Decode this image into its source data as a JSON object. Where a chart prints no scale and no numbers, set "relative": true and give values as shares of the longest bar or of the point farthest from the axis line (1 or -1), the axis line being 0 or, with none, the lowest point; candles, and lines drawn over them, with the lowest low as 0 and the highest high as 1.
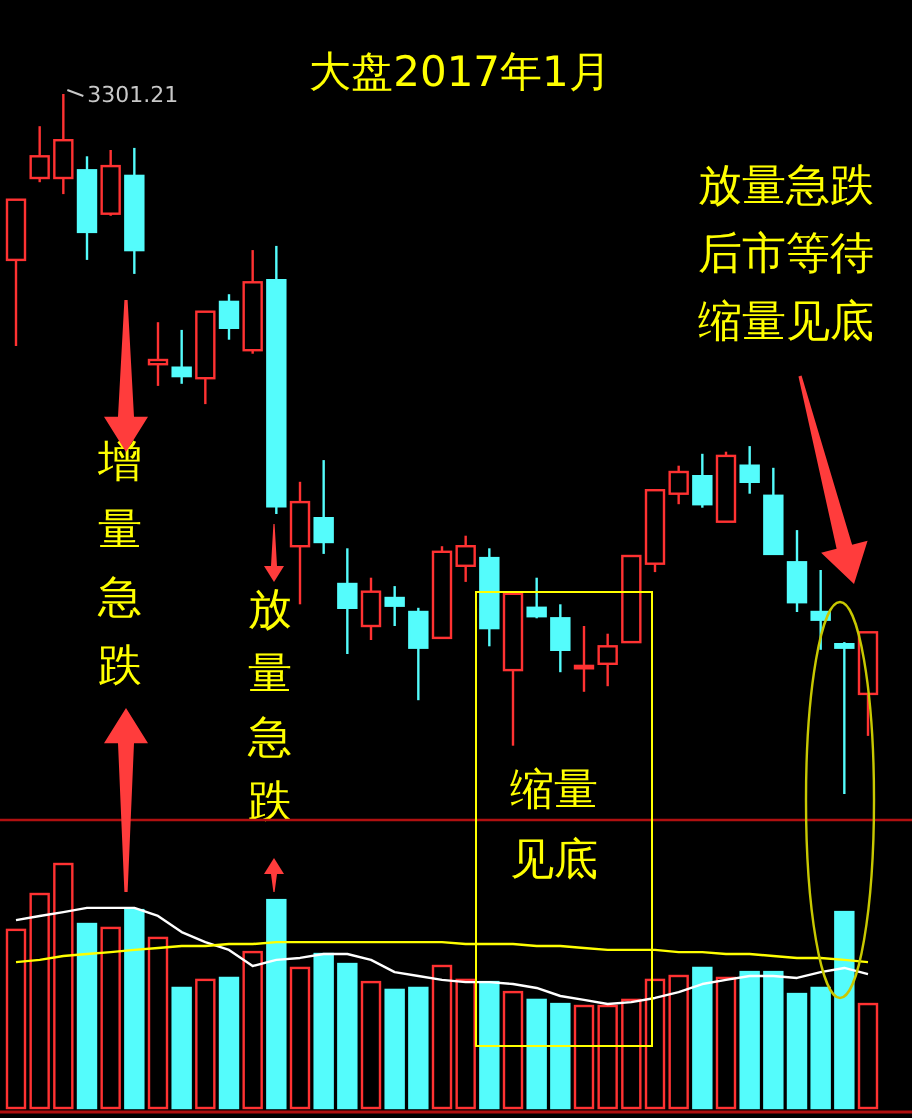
{
  "chart_data": [
    {
      "type": "candlestick",
      "title": "大盘2017年1月",
      "relative": true,
      "categories": [
        null,
        null,
        null,
        null,
        null,
        null,
        null,
        null,
        null,
        null,
        null,
        null,
        null,
        null,
        null,
        null,
        null,
        null,
        null,
        null,
        null,
        null,
        null,
        null,
        null,
        null,
        null,
        null,
        null,
        null,
        null,
        null,
        null,
        null,
        null,
        null,
        null
      ],
      "ohlc": [
        [
          0.763,
          0.849,
          0.64,
          0.849
        ],
        [
          0.88,
          0.954,
          0.874,
          0.911
        ],
        [
          0.88,
          1,
          0.857,
          0.934
        ],
        [
          0.891,
          0.911,
          0.763,
          0.803
        ],
        [
          0.829,
          0.92,
          0.826,
          0.897
        ],
        [
          0.883,
          0.923,
          0.743,
          0.777
        ],
        [
          0.614,
          0.674,
          0.583,
          0.62
        ],
        [
          0.609,
          0.663,
          0.586,
          0.597
        ],
        [
          0.594,
          0.689,
          0.557,
          0.689
        ],
        [
          0.703,
          0.714,
          0.649,
          0.666
        ],
        [
          0.634,
          0.777,
          0.629,
          0.731
        ],
        [
          0.734,
          0.783,
          0.4,
          0.411
        ],
        [
          0.354,
          0.446,
          0.271,
          0.417
        ],
        [
          0.394,
          0.477,
          0.343,
          0.36
        ],
        [
          0.3,
          0.351,
          0.2,
          0.266
        ],
        [
          0.24,
          0.309,
          0.22,
          0.289
        ],
        [
          0.28,
          0.297,
          0.24,
          0.269
        ],
        [
          0.26,
          0.266,
          0.134,
          0.209
        ],
        [
          0.223,
          0.354,
          0.223,
          0.346
        ],
        [
          0.326,
          0.369,
          0.303,
          0.354
        ],
        [
          0.337,
          0.351,
          0.211,
          0.237
        ],
        [
          0.177,
          0.286,
          0.069,
          0.286
        ],
        [
          0.266,
          0.309,
          0.251,
          0.254
        ],
        [
          0.251,
          0.271,
          0.174,
          0.206
        ],
        [
          0.18,
          0.24,
          0.146,
          0.183
        ],
        [
          0.186,
          0.229,
          0.154,
          0.211
        ],
        [
          0.217,
          0.34,
          0.217,
          0.34
        ],
        [
          0.329,
          0.434,
          0.317,
          0.434
        ],
        [
          0.429,
          0.469,
          0.414,
          0.46
        ],
        [
          0.454,
          0.486,
          0.409,
          0.414
        ],
        [
          0.389,
          0.489,
          0.389,
          0.483
        ],
        [
          0.469,
          0.497,
          0.429,
          0.446
        ],
        [
          0.426,
          0.466,
          0.343,
          0.343
        ],
        [
          0.331,
          0.377,
          0.26,
          0.274
        ],
        [
          0.26,
          0.32,
          0.206,
          0.249
        ],
        [
          0.214,
          0.217,
          0,
          0.209
        ],
        [
          0.143,
          0.231,
          0.083,
          0.231
        ]
      ],
      "colors": [
        "#ff3232",
        "#ff3232",
        "#ff3232",
        "#54fcfc",
        "#ff3232",
        "#54fcfc",
        "#ff3232",
        "#54fcfc",
        "#ff3232",
        "#54fcfc",
        "#ff3232",
        "#54fcfc",
        "#ff3232",
        "#54fcfc",
        "#54fcfc",
        "#ff3232",
        "#54fcfc",
        "#54fcfc",
        "#ff3232",
        "#ff3232",
        "#54fcfc",
        "#ff3232",
        "#54fcfc",
        "#54fcfc",
        "#ff3232",
        "#ff3232",
        "#ff3232",
        "#ff3232",
        "#ff3232",
        "#54fcfc",
        "#ff3232",
        "#54fcfc",
        "#54fcfc",
        "#54fcfc",
        "#54fcfc",
        "#54fcfc",
        "#ff3232"
      ],
      "annotations": [
        "3301.21",
        "增量急跌",
        "放量急跌",
        "缩量",
        "见底",
        "放量急跌",
        "后市等待",
        "缩量见底"
      ]
    },
    {
      "type": "bar",
      "relative": true,
      "categories": [
        null,
        null,
        null,
        null,
        null,
        null,
        null,
        null,
        null,
        null,
        null,
        null,
        null,
        null,
        null,
        null,
        null,
        null,
        null,
        null,
        null,
        null,
        null,
        null,
        null,
        null,
        null,
        null,
        null,
        null,
        null,
        null,
        null,
        null,
        null,
        null,
        null
      ],
      "series": [
        {
          "type": "bar",
          "colors": [
            "#ff3232",
            "#ff3232",
            "#ff3232",
            "#54fcfc",
            "#ff3232",
            "#54fcfc",
            "#ff3232",
            "#54fcfc",
            "#ff3232",
            "#54fcfc",
            "#ff3232",
            "#54fcfc",
            "#ff3232",
            "#54fcfc",
            "#54fcfc",
            "#ff3232",
            "#54fcfc",
            "#54fcfc",
            "#ff3232",
            "#ff3232",
            "#54fcfc",
            "#ff3232",
            "#54fcfc",
            "#54fcfc",
            "#ff3232",
            "#ff3232",
            "#ff3232",
            "#ff3232",
            "#ff3232",
            "#54fcfc",
            "#ff3232",
            "#54fcfc",
            "#54fcfc",
            "#54fcfc",
            "#54fcfc",
            "#54fcfc",
            "#ff3232"
          ],
          "values": [
            0.73,
            0.877,
            1,
            0.754,
            0.738,
            0.811,
            0.697,
            0.492,
            0.525,
            0.533,
            0.639,
            0.852,
            0.574,
            0.631,
            0.59,
            0.516,
            0.484,
            0.492,
            0.582,
            0.525,
            0.516,
            0.475,
            0.443,
            0.426,
            0.418,
            0.418,
            0.443,
            0.525,
            0.541,
            0.574,
            0.533,
            0.557,
            0.557,
            0.467,
            0.492,
            0.803,
            0.426
          ]
        },
        {
          "type": "line",
          "color": "#ffffff",
          "values": [
            0.77,
            0.787,
            0.803,
            0.82,
            0.82,
            0.82,
            0.787,
            0.721,
            0.68,
            0.648,
            0.582,
            0.607,
            0.615,
            0.631,
            0.631,
            0.607,
            0.557,
            0.541,
            0.525,
            0.516,
            0.516,
            0.508,
            0.492,
            0.459,
            0.443,
            0.426,
            0.434,
            0.451,
            0.475,
            0.508,
            0.525,
            0.541,
            0.541,
            0.533,
            0.557,
            0.574,
            0.549
          ]
        },
        {
          "type": "line",
          "color": "#ffff00",
          "values": [
            0.598,
            0.607,
            0.623,
            0.631,
            0.639,
            0.648,
            0.656,
            0.664,
            0.664,
            0.672,
            0.672,
            0.68,
            0.68,
            0.68,
            0.68,
            0.68,
            0.68,
            0.68,
            0.68,
            0.672,
            0.672,
            0.672,
            0.664,
            0.664,
            0.656,
            0.648,
            0.648,
            0.648,
            0.639,
            0.639,
            0.631,
            0.631,
            0.623,
            0.615,
            0.615,
            0.607,
            0.598
          ]
        }
      ]
    }
  ]
}
